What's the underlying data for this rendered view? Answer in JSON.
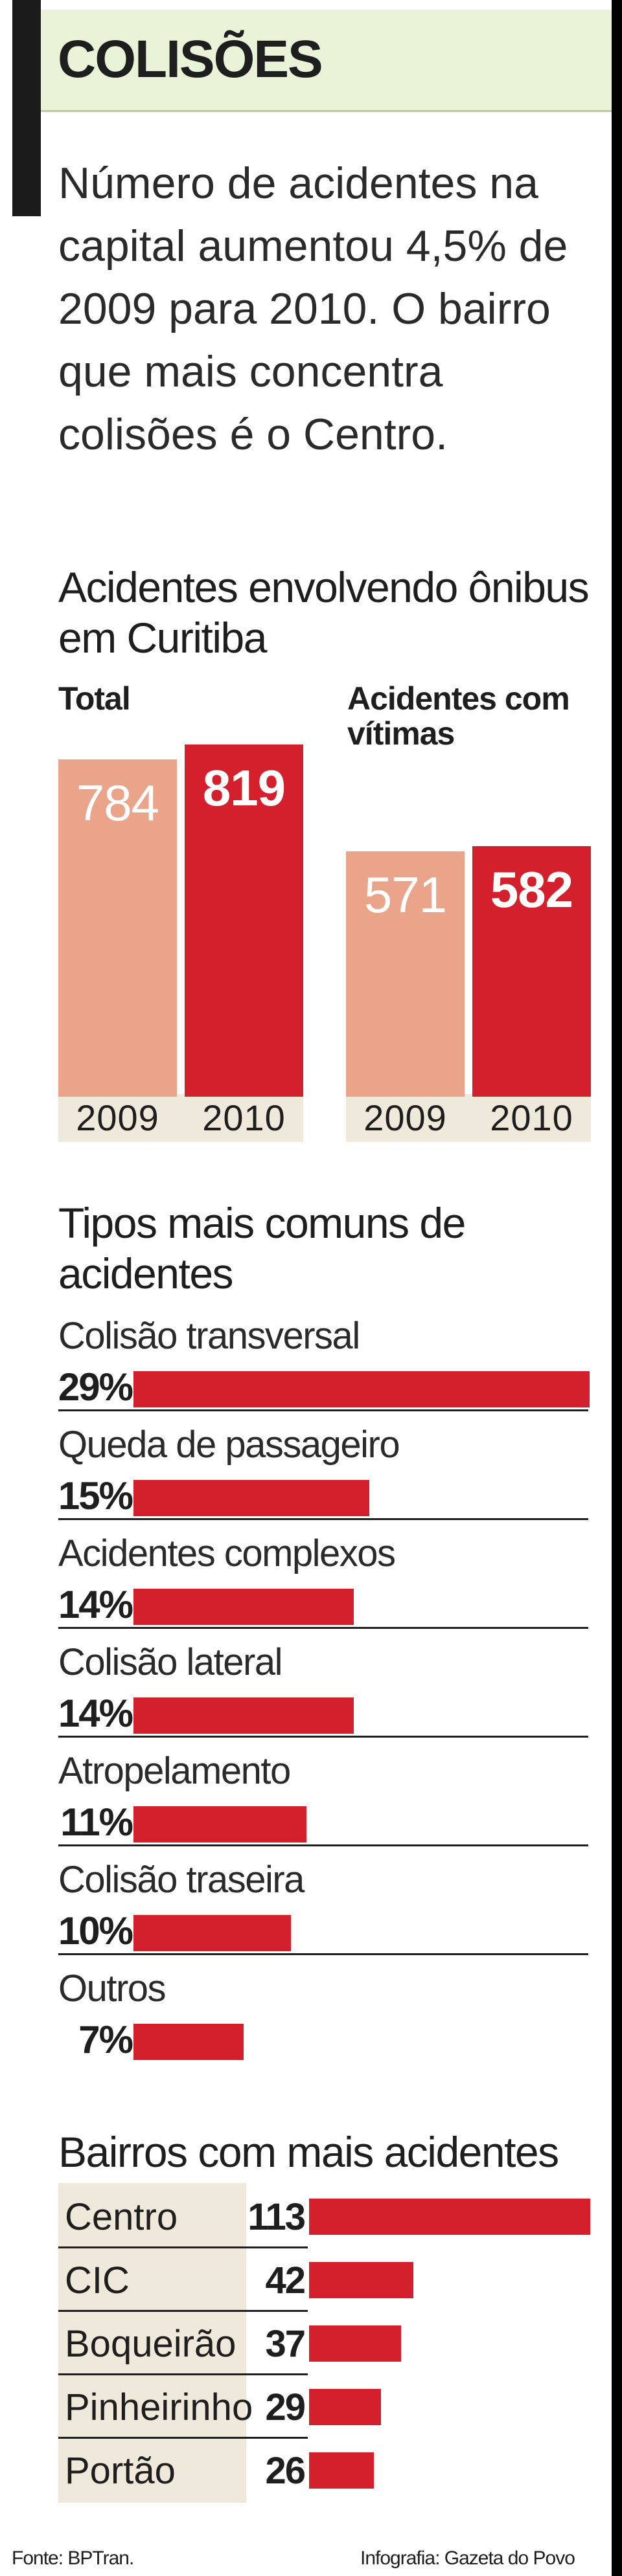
{
  "header": {
    "title": "COLISÕES"
  },
  "intro": "Número de acidentes na capital aumentou 4,5% de 2009 para 2010. O bairro que mais concentra colisões é o Centro.",
  "chart_data": [
    {
      "type": "bar",
      "title": "Acidentes envolvendo ônibus em Curitiba",
      "groups": [
        {
          "label": "Total",
          "categories": [
            "2009",
            "2010"
          ],
          "values": [
            784,
            819
          ]
        },
        {
          "label": "Acidentes com vítimas",
          "categories": [
            "2009",
            "2010"
          ],
          "values": [
            571,
            582
          ]
        }
      ]
    },
    {
      "type": "bar",
      "orientation": "horizontal",
      "title": "Tipos mais comuns de acidentes",
      "categories": [
        "Colisão transversal",
        "Queda de passageiro",
        "Acidentes complexos",
        "Colisão lateral",
        "Atropelamento",
        "Colisão traseira",
        "Outros"
      ],
      "values": [
        29,
        15,
        14,
        14,
        11,
        10,
        7
      ],
      "labels": [
        "29%",
        "15%",
        "14%",
        "14%",
        "11%",
        "10%",
        "7%"
      ],
      "unit": "%"
    },
    {
      "type": "bar",
      "orientation": "horizontal",
      "title": "Bairros com mais acidentes",
      "categories": [
        "Centro",
        "CIC",
        "Boqueirão",
        "Pinheirinho",
        "Portão"
      ],
      "values": [
        113,
        42,
        37,
        29,
        26
      ]
    }
  ],
  "footer": {
    "source": "Fonte: BPTran.",
    "credit": "Infografia: Gazeta do Povo"
  },
  "colors": {
    "accent": "#d4202c",
    "light_bar": "#e9a48a",
    "header_bg": "#e9f3d8",
    "panel_bg": "#efe9dc"
  }
}
